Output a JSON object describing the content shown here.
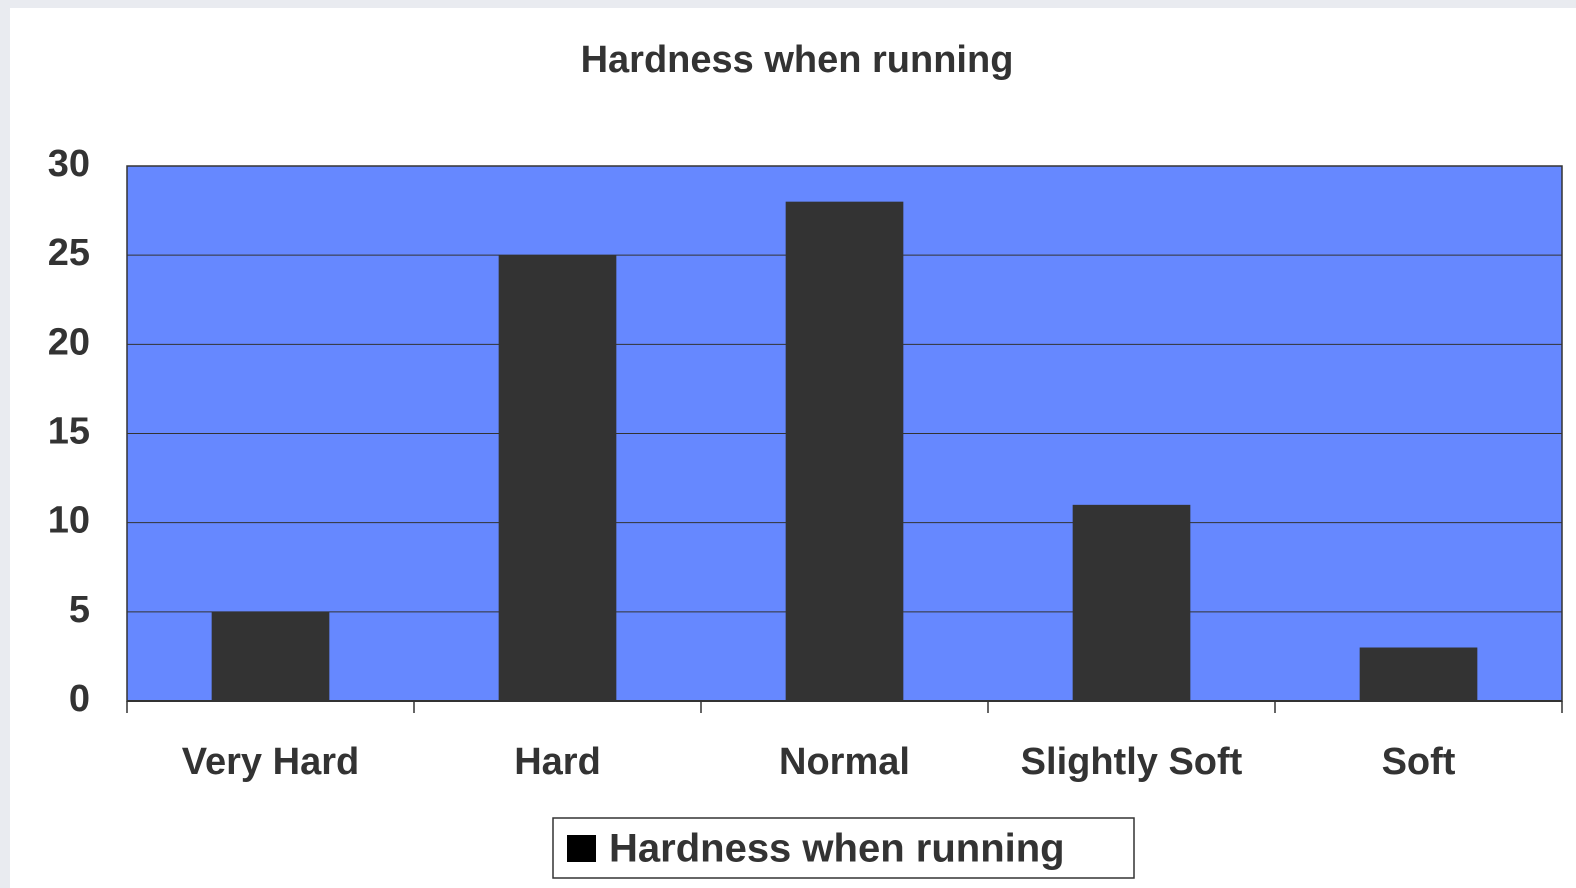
{
  "chart_data": {
    "type": "bar",
    "title": "Hardness when running",
    "categories": [
      "Very Hard",
      "Hard",
      "Normal",
      "Slightly Soft",
      "Soft"
    ],
    "series": [
      {
        "name": "Hardness when running",
        "color": "#333333",
        "values": [
          5,
          25,
          28,
          11,
          3
        ]
      }
    ],
    "ylim": [
      0,
      30
    ],
    "yticks": [
      0,
      5,
      10,
      15,
      20,
      25,
      30
    ],
    "grid": true,
    "plot_background": "#6688ff",
    "legend": "bottom"
  }
}
